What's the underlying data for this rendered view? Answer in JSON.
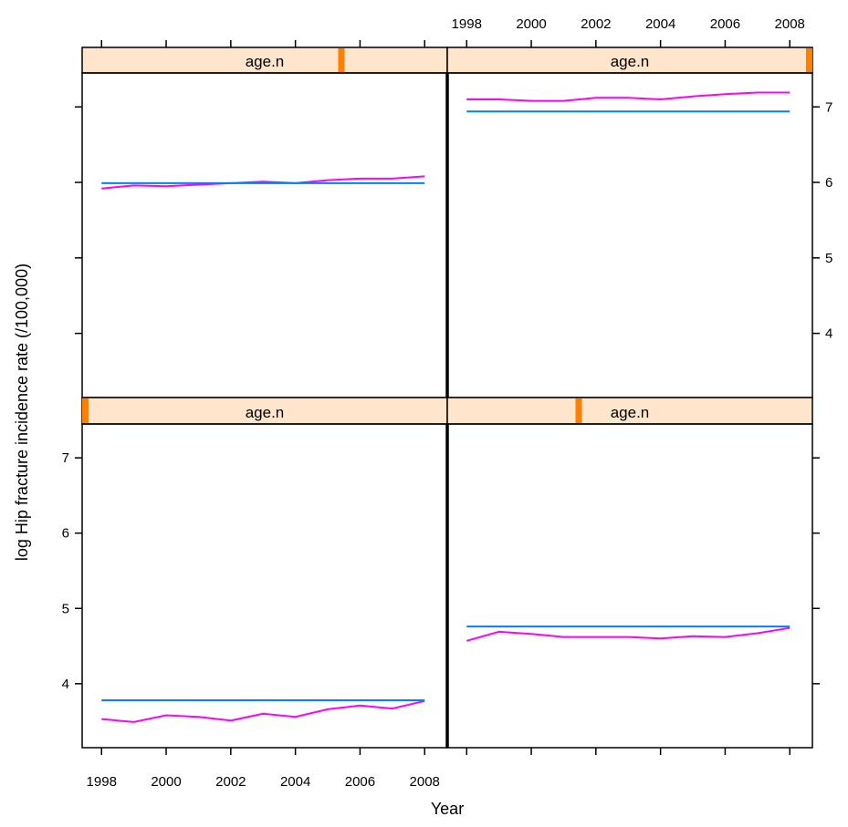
{
  "chart_data": {
    "type": "line",
    "layout": "lattice 2x2 panels",
    "xlabel": "Year",
    "ylabel": "log Hip fracture incidence rate (/100,000)",
    "xlim": [
      1997.4,
      2008.7
    ],
    "ylim": [
      3.15,
      7.45
    ],
    "x_ticks": [
      1998,
      2000,
      2002,
      2004,
      2006,
      2008
    ],
    "y_ticks": [
      4,
      5,
      6,
      7
    ],
    "grid": false,
    "colors": {
      "magenta": "#ff00ff",
      "blue": "#0080ff",
      "strip_bg": "#ffe5cc",
      "strip_marker": "#ff7f00"
    },
    "panels": [
      {
        "strip_label": "age.n",
        "strip_marker_fraction": 0.71,
        "position": "top-left",
        "series": [
          {
            "color": "#ff00ff",
            "x": [
              1998,
              1999,
              2000,
              2001,
              2002,
              2003,
              2004,
              2005,
              2006,
              2007,
              2008
            ],
            "y": [
              5.92,
              5.96,
              5.95,
              5.97,
              5.99,
              6.01,
              5.99,
              6.03,
              6.05,
              6.05,
              6.08
            ]
          },
          {
            "color": "#0080ff",
            "x": [
              1998,
              2008
            ],
            "y": [
              5.99,
              5.99
            ]
          }
        ]
      },
      {
        "strip_label": "age.n",
        "strip_marker_fraction": 1.0,
        "position": "top-right",
        "series": [
          {
            "color": "#ff00ff",
            "x": [
              1998,
              1999,
              2000,
              2001,
              2002,
              2003,
              2004,
              2005,
              2006,
              2007,
              2008
            ],
            "y": [
              7.1,
              7.1,
              7.08,
              7.08,
              7.12,
              7.12,
              7.1,
              7.14,
              7.17,
              7.19,
              7.19
            ]
          },
          {
            "color": "#0080ff",
            "x": [
              1998,
              2008
            ],
            "y": [
              6.94,
              6.94
            ]
          }
        ]
      },
      {
        "strip_label": "age.n",
        "strip_marker_fraction": 0.0,
        "position": "bottom-left",
        "series": [
          {
            "color": "#ff00ff",
            "x": [
              1998,
              1999,
              2000,
              2001,
              2002,
              2003,
              2004,
              2005,
              2006,
              2007,
              2008
            ],
            "y": [
              3.53,
              3.49,
              3.58,
              3.56,
              3.51,
              3.6,
              3.56,
              3.66,
              3.71,
              3.67,
              3.77
            ]
          },
          {
            "color": "#0080ff",
            "x": [
              1998,
              2008
            ],
            "y": [
              3.78,
              3.78
            ]
          }
        ]
      },
      {
        "strip_label": "age.n",
        "strip_marker_fraction": 0.36,
        "position": "bottom-right",
        "series": [
          {
            "color": "#ff00ff",
            "x": [
              1998,
              1999,
              2000,
              2001,
              2002,
              2003,
              2004,
              2005,
              2006,
              2007,
              2008
            ],
            "y": [
              4.57,
              4.69,
              4.66,
              4.62,
              4.62,
              4.62,
              4.6,
              4.63,
              4.62,
              4.67,
              4.74
            ]
          },
          {
            "color": "#0080ff",
            "x": [
              1998,
              2008
            ],
            "y": [
              4.76,
              4.76
            ]
          }
        ]
      }
    ]
  }
}
